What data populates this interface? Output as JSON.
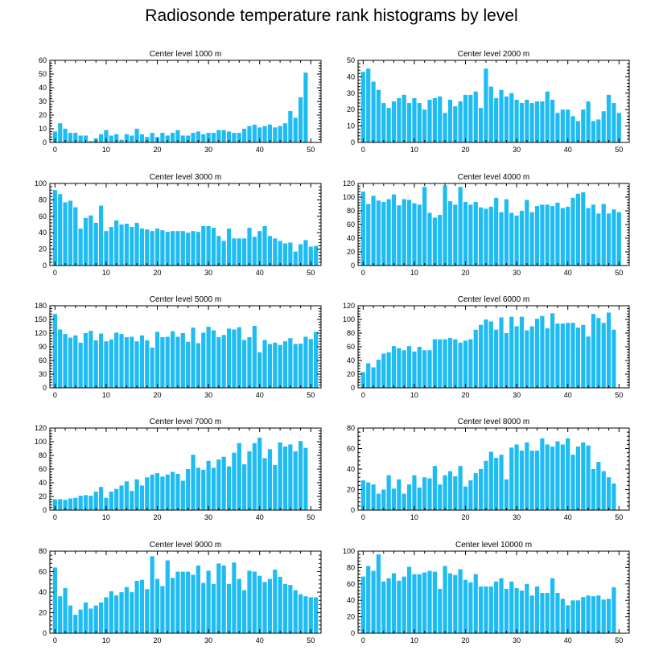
{
  "title": "Radiosonde temperature rank histograms by level",
  "colors": {
    "bar": "#1ebcf2",
    "axis": "#000000"
  },
  "chart_data": [
    {
      "type": "bar",
      "title": "Center level 1000 m",
      "xlim": [
        -1,
        52
      ],
      "ylim": [
        0,
        60
      ],
      "xticks": [
        0,
        10,
        20,
        30,
        40,
        50
      ],
      "yticks": [
        0,
        10,
        20,
        30,
        40,
        50,
        60
      ],
      "values": [
        8,
        14,
        10,
        7,
        7,
        5,
        5,
        1,
        3,
        6,
        9,
        5,
        6,
        2,
        6,
        5,
        10,
        6,
        4,
        7,
        4,
        7,
        5,
        7,
        9,
        5,
        5,
        7,
        8,
        6,
        7,
        7,
        9,
        9,
        8,
        7,
        7,
        10,
        12,
        13,
        11,
        12,
        13,
        11,
        12,
        14,
        23,
        18,
        33,
        51
      ]
    },
    {
      "type": "bar",
      "title": "Center level 2000 m",
      "xlim": [
        -1,
        52
      ],
      "ylim": [
        0,
        50
      ],
      "xticks": [
        0,
        10,
        20,
        30,
        40,
        50
      ],
      "yticks": [
        0,
        10,
        20,
        30,
        40,
        50
      ],
      "values": [
        43,
        45,
        37,
        32,
        24,
        21,
        25,
        27,
        29,
        24,
        27,
        24,
        20,
        26,
        27,
        28,
        18,
        26,
        22,
        25,
        29,
        29,
        31,
        21,
        45,
        34,
        27,
        32,
        28,
        30,
        26,
        24,
        26,
        24,
        25,
        25,
        31,
        26,
        18,
        20,
        20,
        16,
        13,
        20,
        25,
        13,
        14,
        19,
        29,
        24,
        18
      ]
    },
    {
      "type": "bar",
      "title": "Center level 3000 m",
      "xlim": [
        -1,
        52
      ],
      "ylim": [
        0,
        100
      ],
      "xticks": [
        0,
        10,
        20,
        30,
        40,
        50
      ],
      "yticks": [
        0,
        20,
        40,
        60,
        80,
        100
      ],
      "values": [
        92,
        87,
        77,
        79,
        71,
        45,
        58,
        61,
        52,
        73,
        42,
        47,
        55,
        50,
        51,
        47,
        52,
        45,
        44,
        42,
        45,
        43,
        41,
        42,
        42,
        42,
        40,
        42,
        41,
        48,
        48,
        46,
        36,
        30,
        45,
        33,
        33,
        33,
        46,
        35,
        42,
        48,
        36,
        33,
        30,
        27,
        28,
        17,
        26,
        31,
        23,
        24
      ]
    },
    {
      "type": "bar",
      "title": "Center level 4000 m",
      "xlim": [
        -1,
        52
      ],
      "ylim": [
        0,
        120
      ],
      "xticks": [
        0,
        10,
        20,
        30,
        40,
        50
      ],
      "yticks": [
        0,
        20,
        40,
        60,
        80,
        100,
        120
      ],
      "values": [
        108,
        90,
        102,
        95,
        93,
        97,
        104,
        88,
        97,
        96,
        91,
        89,
        115,
        77,
        70,
        74,
        117,
        94,
        89,
        115,
        93,
        89,
        93,
        85,
        83,
        86,
        99,
        78,
        97,
        77,
        73,
        80,
        96,
        78,
        87,
        89,
        89,
        87,
        92,
        84,
        86,
        99,
        105,
        107,
        84,
        89,
        76,
        90,
        76,
        82,
        78
      ]
    },
    {
      "type": "bar",
      "title": "Center level 5000 m",
      "xlim": [
        -1,
        52
      ],
      "ylim": [
        0,
        180
      ],
      "xticks": [
        0,
        10,
        20,
        30,
        40,
        50
      ],
      "yticks": [
        0,
        30,
        60,
        90,
        120,
        150,
        180
      ],
      "values": [
        162,
        128,
        118,
        110,
        115,
        99,
        120,
        125,
        104,
        119,
        102,
        106,
        121,
        118,
        111,
        112,
        102,
        115,
        104,
        88,
        123,
        111,
        112,
        124,
        112,
        120,
        101,
        132,
        98,
        121,
        134,
        126,
        111,
        116,
        130,
        128,
        133,
        105,
        111,
        136,
        78,
        105,
        96,
        99,
        94,
        102,
        109,
        96,
        97,
        112,
        107,
        123
      ]
    },
    {
      "type": "bar",
      "title": "Center level 6000 m",
      "xlim": [
        -1,
        52
      ],
      "ylim": [
        0,
        120
      ],
      "xticks": [
        0,
        10,
        20,
        30,
        40,
        50
      ],
      "yticks": [
        0,
        20,
        40,
        60,
        80,
        100,
        120
      ],
      "values": [
        23,
        36,
        30,
        41,
        50,
        52,
        61,
        58,
        55,
        61,
        53,
        60,
        55,
        55,
        71,
        71,
        71,
        73,
        71,
        66,
        69,
        71,
        85,
        92,
        100,
        97,
        85,
        103,
        80,
        104,
        90,
        104,
        84,
        90,
        101,
        105,
        87,
        109,
        94,
        94,
        95,
        95,
        88,
        92,
        75,
        108,
        102,
        95,
        110,
        85
      ]
    },
    {
      "type": "bar",
      "title": "Center level 7000 m",
      "xlim": [
        -1,
        52
      ],
      "ylim": [
        0,
        120
      ],
      "xticks": [
        0,
        10,
        20,
        30,
        40,
        50
      ],
      "yticks": [
        0,
        20,
        40,
        60,
        80,
        100,
        120
      ],
      "values": [
        16,
        16,
        15,
        17,
        18,
        21,
        22,
        21,
        27,
        34,
        18,
        27,
        31,
        36,
        42,
        28,
        45,
        36,
        48,
        52,
        54,
        49,
        52,
        56,
        53,
        43,
        60,
        81,
        62,
        59,
        72,
        62,
        74,
        78,
        64,
        84,
        98,
        67,
        86,
        98,
        106,
        76,
        89,
        66,
        99,
        93,
        96,
        86,
        101,
        91
      ]
    },
    {
      "type": "bar",
      "title": "Center level 8000 m",
      "xlim": [
        -1,
        52
      ],
      "ylim": [
        0,
        80
      ],
      "xticks": [
        0,
        10,
        20,
        30,
        40,
        50
      ],
      "yticks": [
        0,
        20,
        40,
        60,
        80
      ],
      "values": [
        29,
        27,
        25,
        16,
        20,
        34,
        21,
        30,
        16,
        25,
        34,
        22,
        32,
        31,
        43,
        25,
        34,
        38,
        33,
        43,
        23,
        29,
        36,
        40,
        48,
        57,
        51,
        54,
        30,
        61,
        64,
        58,
        66,
        58,
        58,
        70,
        64,
        62,
        67,
        64,
        70,
        54,
        62,
        66,
        63,
        40,
        47,
        38,
        32,
        26
      ]
    },
    {
      "type": "bar",
      "title": "Center level 9000 m",
      "xlim": [
        -1,
        52
      ],
      "ylim": [
        0,
        80
      ],
      "xticks": [
        0,
        10,
        20,
        30,
        40,
        50
      ],
      "yticks": [
        0,
        20,
        40,
        60,
        80
      ],
      "values": [
        64,
        36,
        44,
        27,
        18,
        23,
        30,
        24,
        27,
        30,
        35,
        41,
        37,
        40,
        45,
        40,
        51,
        52,
        43,
        75,
        53,
        46,
        71,
        54,
        60,
        60,
        60,
        57,
        66,
        49,
        61,
        48,
        68,
        66,
        48,
        69,
        53,
        42,
        61,
        60,
        56,
        50,
        53,
        62,
        55,
        48,
        47,
        42,
        38,
        36,
        35,
        35
      ]
    },
    {
      "type": "bar",
      "title": "Center level 10000 m",
      "xlim": [
        -1,
        52
      ],
      "ylim": [
        0,
        100
      ],
      "xticks": [
        0,
        10,
        20,
        30,
        40,
        50
      ],
      "yticks": [
        0,
        20,
        40,
        60,
        80,
        100
      ],
      "values": [
        69,
        82,
        76,
        96,
        63,
        67,
        73,
        64,
        69,
        81,
        72,
        72,
        74,
        76,
        75,
        54,
        82,
        73,
        71,
        78,
        65,
        62,
        72,
        57,
        57,
        57,
        63,
        67,
        54,
        63,
        55,
        52,
        60,
        46,
        57,
        49,
        49,
        67,
        49,
        42,
        34,
        40,
        40,
        44,
        46,
        45,
        46,
        41,
        42,
        56
      ]
    }
  ]
}
